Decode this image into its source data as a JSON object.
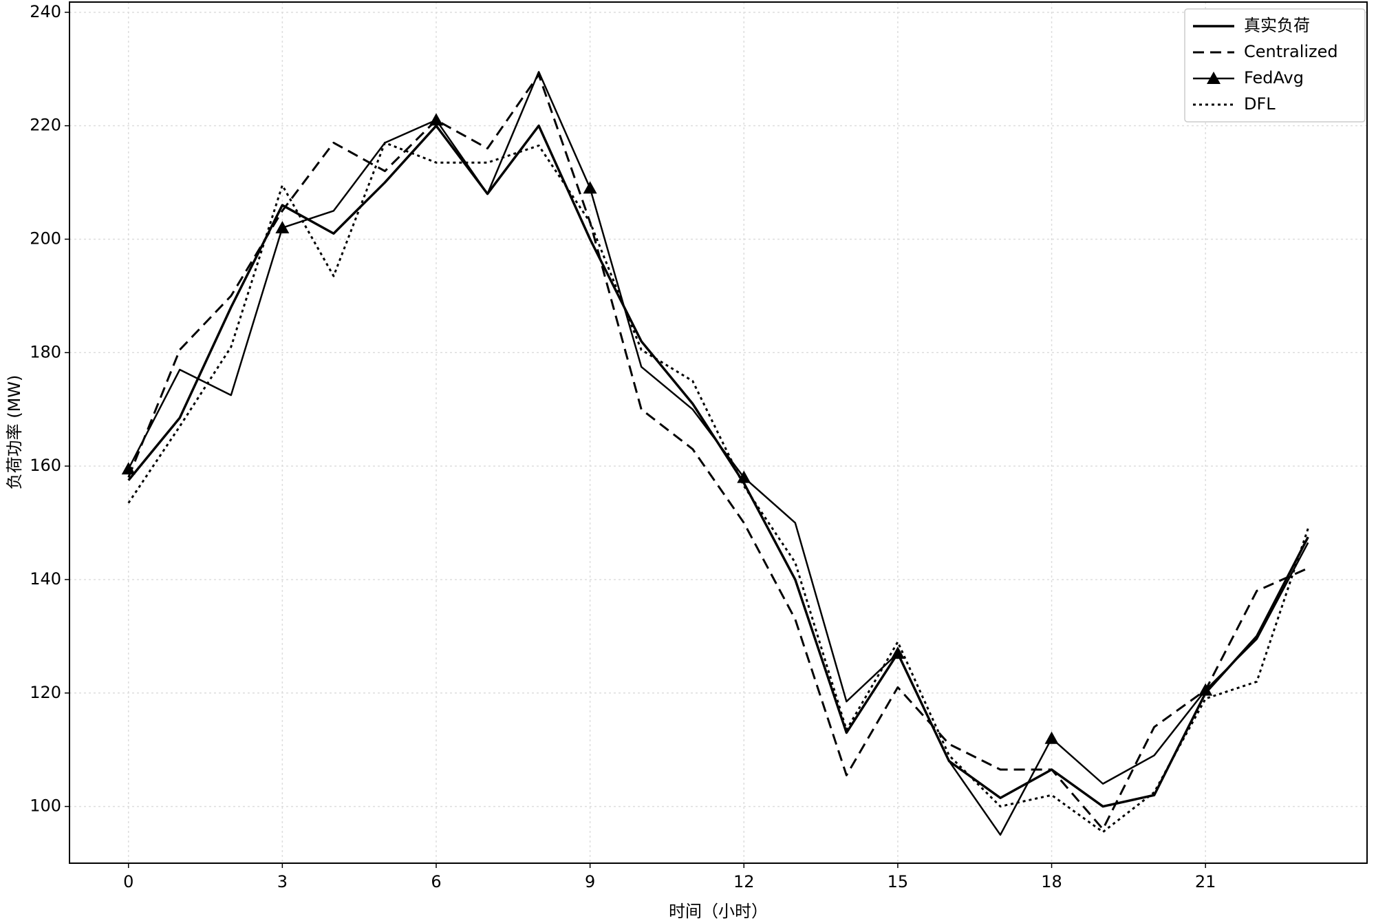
{
  "chart_data": {
    "type": "line",
    "x_label": "时间（小时）",
    "y_label": "负荷功率 (MW)",
    "x": [
      0,
      1,
      2,
      3,
      4,
      5,
      6,
      7,
      8,
      9,
      10,
      11,
      12,
      13,
      14,
      15,
      16,
      17,
      18,
      19,
      20,
      21,
      22,
      23
    ],
    "series": [
      {
        "name": "真实负荷",
        "color": "#000000",
        "linestyle": "solid",
        "linewidth": 3.5,
        "values": [
          157.5,
          168.5,
          188,
          206,
          201,
          210,
          220,
          208,
          220,
          200,
          182,
          171,
          157,
          140,
          113,
          127,
          108,
          101.5,
          106.5,
          100,
          102,
          120,
          130,
          147.5
        ]
      },
      {
        "name": "Centralized",
        "color": "#000000",
        "linestyle": "dashed",
        "linewidth": 3,
        "values": [
          158,
          180.5,
          190,
          205,
          217,
          212,
          221,
          216,
          229,
          203,
          170,
          163,
          150,
          133,
          105.5,
          121,
          111,
          106.5,
          106.5,
          96,
          114,
          120.5,
          138,
          142
        ]
      },
      {
        "name": "FedAvg",
        "color": "#000000",
        "linestyle": "solid",
        "linewidth": 2.5,
        "marker": "triangle",
        "markevery": 3,
        "values": [
          159.5,
          177,
          172.5,
          202,
          205,
          217,
          221,
          208,
          229.5,
          209,
          177.5,
          170,
          158,
          150,
          118.5,
          127,
          108,
          95,
          112,
          104,
          109,
          120.5,
          129.5,
          146.5
        ]
      },
      {
        "name": "DFL",
        "color": "#000000",
        "linestyle": "dotted",
        "linewidth": 3,
        "values": [
          153.5,
          167,
          181,
          209.5,
          193.5,
          217,
          213.5,
          213.5,
          216.5,
          203,
          180.5,
          175,
          156.5,
          143,
          113.5,
          129,
          109,
          100,
          102,
          95.5,
          102.5,
          119,
          122,
          149
        ]
      }
    ],
    "xlim": [
      -1.15,
      24.15
    ],
    "xticks": [
      0,
      3,
      6,
      9,
      12,
      15,
      18,
      21
    ],
    "ylim": [
      90,
      241.8
    ],
    "yticks": [
      100,
      120,
      140,
      160,
      180,
      200,
      220,
      240
    ],
    "grid": true,
    "legend": "upper right"
  }
}
